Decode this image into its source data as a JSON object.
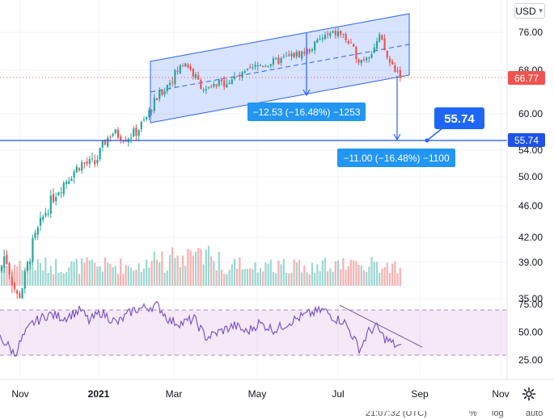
{
  "currency": "USD",
  "chart_data": {
    "type": "candlestick",
    "last_price": 66.77,
    "price_axis": {
      "ticks": [
        76.0,
        68.0,
        60.0,
        54.0,
        50.0,
        46.0,
        42.0,
        39.0,
        35.0
      ],
      "tick_labels": [
        "76.00",
        "68.00",
        "60.00",
        "54.00",
        "50.00",
        "46.00",
        "42.00",
        "39.00",
        "35.00"
      ]
    },
    "x_axis": {
      "labels": [
        "Nov",
        "2021",
        "Mar",
        "May",
        "Jul",
        "Sep",
        "Nov"
      ],
      "bold": [
        "2021"
      ]
    },
    "markers": {
      "last_price_label": "66.77",
      "level_label": "55.74",
      "level_price": 55.74,
      "level_callout": "55.74",
      "channel_measure": "−12.53 (−16.48%) −1253",
      "target_measure": "−11.00 (−16.48%) −1100"
    },
    "rsi": {
      "ticks": [
        75.0,
        50.0,
        25.0
      ],
      "tick_labels": [
        "75.00",
        "50.00",
        "25.00"
      ],
      "band": [
        30,
        70
      ]
    },
    "bottom": {
      "time_text": "21:07:32 (UTC)",
      "percent": "%",
      "log": "log",
      "auto": "auto"
    },
    "colors": {
      "up": "#26a69a",
      "down": "#ef5350",
      "channel": "#2962ff",
      "rsi": "#7e57c2",
      "price_label": "#ef5350",
      "level": "#1e53e5"
    }
  }
}
